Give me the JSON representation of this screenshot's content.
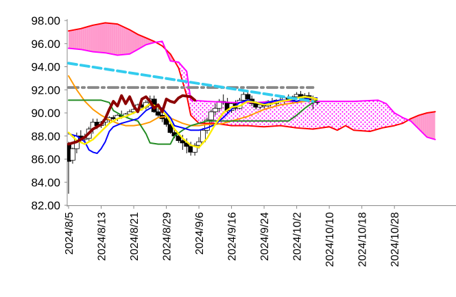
{
  "chart_data": {
    "type": "line",
    "title": "",
    "xlabel": "",
    "ylabel": "",
    "ylim": [
      82,
      98
    ],
    "yticks": [
      "98.00",
      "96.00",
      "94.00",
      "92.00",
      "90.00",
      "88.00",
      "86.00",
      "84.00",
      "82.00"
    ],
    "xticks": [
      "2024/8/5",
      "2024/8/13",
      "2024/8/21",
      "2024/8/29",
      "2024/9/6",
      "2024/9/16",
      "2024/9/24",
      "2024/10/2",
      "2024/10/10",
      "2024/10/18",
      "2024/10/28"
    ],
    "grid": false,
    "legend": "none",
    "colors": {
      "candle_up": "#ffffff",
      "candle_down": "#000000",
      "tenkan": "#0000ff",
      "kijun": "#228b22",
      "chikou": "#8b0000",
      "senkou_a": "#ff0000",
      "senkou_b": "#ff00ff",
      "cloud": "#ff99cc",
      "ma_short": "#ffee00",
      "ma_mid": "#ff9900",
      "trend_long": "#33ccee",
      "trend_flat": "#888888"
    },
    "candles": [
      [
        87.3,
        87.5,
        83.0,
        85.8
      ],
      [
        85.9,
        87.0,
        85.6,
        86.9
      ],
      [
        86.9,
        88.3,
        86.5,
        88.0
      ],
      [
        88.0,
        88.5,
        87.4,
        87.7
      ],
      [
        87.7,
        88.2,
        87.3,
        87.8
      ],
      [
        87.8,
        88.8,
        87.6,
        88.6
      ],
      [
        88.6,
        89.5,
        88.2,
        89.2
      ],
      [
        89.2,
        89.5,
        88.6,
        88.9
      ],
      [
        88.9,
        89.3,
        88.7,
        89.2
      ],
      [
        89.2,
        89.6,
        88.9,
        89.4
      ],
      [
        89.4,
        89.7,
        89.1,
        89.6
      ],
      [
        89.6,
        89.8,
        89.4,
        89.5
      ],
      [
        89.5,
        89.9,
        89.3,
        89.8
      ],
      [
        89.8,
        90.2,
        89.5,
        89.7
      ],
      [
        89.7,
        90.0,
        89.6,
        89.9
      ],
      [
        89.9,
        90.3,
        89.8,
        90.1
      ],
      [
        90.1,
        90.5,
        89.9,
        90.3
      ],
      [
        90.3,
        90.8,
        90.0,
        90.7
      ],
      [
        90.7,
        91.0,
        90.2,
        90.5
      ],
      [
        90.5,
        91.1,
        90.3,
        90.9
      ],
      [
        90.9,
        91.5,
        90.6,
        91.2
      ],
      [
        91.2,
        91.5,
        90.0,
        90.1
      ],
      [
        90.1,
        90.5,
        89.6,
        89.8
      ],
      [
        89.8,
        90.2,
        89.2,
        89.5
      ],
      [
        89.5,
        89.8,
        88.8,
        89.0
      ],
      [
        89.0,
        89.3,
        88.2,
        88.3
      ],
      [
        88.3,
        88.6,
        87.8,
        88.0
      ],
      [
        88.0,
        88.3,
        87.4,
        87.6
      ],
      [
        87.6,
        88.1,
        86.8,
        87.4
      ],
      [
        87.4,
        87.8,
        86.5,
        87.1
      ],
      [
        87.1,
        87.5,
        86.3,
        86.6
      ],
      [
        86.6,
        87.4,
        86.3,
        87.2
      ],
      [
        87.2,
        87.9,
        86.9,
        87.5
      ],
      [
        87.5,
        88.7,
        87.3,
        88.5
      ],
      [
        88.5,
        89.6,
        88.2,
        89.4
      ],
      [
        89.4,
        90.3,
        89.1,
        90.1
      ],
      [
        90.1,
        90.8,
        89.8,
        90.4
      ],
      [
        90.4,
        91.2,
        90.1,
        91.0
      ],
      [
        91.0,
        91.6,
        90.7,
        90.9
      ],
      [
        90.9,
        91.3,
        90.0,
        90.2
      ],
      [
        90.2,
        90.9,
        90.0,
        90.8
      ],
      [
        90.8,
        91.1,
        90.2,
        90.4
      ],
      [
        90.4,
        91.3,
        90.3,
        91.1
      ],
      [
        91.1,
        91.8,
        90.9,
        91.6
      ],
      [
        91.6,
        91.9,
        91.0,
        91.2
      ],
      [
        91.2,
        91.5,
        90.6,
        90.8
      ],
      [
        90.8,
        91.0,
        90.3,
        90.5
      ],
      [
        90.5,
        90.9,
        90.3,
        90.7
      ],
      [
        90.7,
        91.0,
        90.4,
        90.6
      ],
      [
        90.6,
        91.1,
        90.5,
        91.0
      ],
      [
        91.0,
        91.3,
        90.7,
        90.8
      ],
      [
        90.8,
        91.2,
        90.6,
        91.1
      ],
      [
        91.1,
        91.4,
        90.9,
        91.0
      ],
      [
        91.0,
        91.4,
        90.8,
        91.3
      ],
      [
        91.3,
        91.6,
        91.0,
        91.1
      ],
      [
        91.1,
        91.5,
        90.9,
        91.4
      ],
      [
        91.4,
        91.8,
        91.2,
        91.6
      ],
      [
        91.6,
        91.9,
        91.1,
        91.3
      ],
      [
        91.3,
        91.7,
        91.0,
        91.5
      ],
      [
        91.5,
        91.8,
        90.9,
        91.1
      ],
      [
        91.1,
        91.5,
        90.3,
        91.0
      ],
      [
        91.0,
        91.3,
        90.7,
        90.9
      ]
    ],
    "senkou_a": [
      [
        0,
        97.1
      ],
      [
        3,
        97.3
      ],
      [
        6,
        97.6
      ],
      [
        9,
        97.8
      ],
      [
        12,
        97.7
      ],
      [
        15,
        97.2
      ],
      [
        17,
        96.8
      ],
      [
        19,
        96.5
      ],
      [
        21,
        96.2
      ],
      [
        23,
        95.8
      ],
      [
        25,
        95.1
      ],
      [
        27,
        93.9
      ],
      [
        29,
        91.5
      ],
      [
        30,
        89.8
      ],
      [
        32,
        89.1
      ],
      [
        36,
        89.1
      ],
      [
        40,
        88.9
      ],
      [
        44,
        88.9
      ],
      [
        48,
        88.8
      ],
      [
        52,
        88.9
      ],
      [
        56,
        88.7
      ],
      [
        60,
        88.6
      ],
      [
        64,
        88.8
      ],
      [
        66,
        88.5
      ],
      [
        68,
        88.9
      ],
      [
        70,
        88.5
      ],
      [
        74,
        88.4
      ],
      [
        77,
        88.7
      ],
      [
        80,
        88.9
      ],
      [
        82,
        89.1
      ],
      [
        84,
        89.5
      ],
      [
        86,
        89.8
      ],
      [
        88,
        90.0
      ],
      [
        90,
        90.1
      ]
    ],
    "senkou_b": [
      [
        0,
        95.6
      ],
      [
        3,
        95.5
      ],
      [
        6,
        95.3
      ],
      [
        9,
        95.2
      ],
      [
        12,
        95.0
      ],
      [
        15,
        95.1
      ],
      [
        17,
        95.5
      ],
      [
        19,
        95.9
      ],
      [
        21,
        96.1
      ],
      [
        23,
        96.2
      ],
      [
        25,
        94.5
      ],
      [
        27,
        94.4
      ],
      [
        29,
        93.6
      ],
      [
        30,
        91.1
      ],
      [
        34,
        91.0
      ],
      [
        40,
        90.9
      ],
      [
        46,
        90.9
      ],
      [
        52,
        91.0
      ],
      [
        58,
        91.0
      ],
      [
        64,
        91.0
      ],
      [
        70,
        91.0
      ],
      [
        76,
        91.1
      ],
      [
        78,
        90.8
      ],
      [
        80,
        90.0
      ],
      [
        82,
        89.6
      ],
      [
        84,
        89.3
      ],
      [
        86,
        88.6
      ],
      [
        88,
        87.9
      ],
      [
        90,
        87.7
      ]
    ],
    "tenkan": [
      [
        0,
        88.2
      ],
      [
        2,
        88.0
      ],
      [
        4,
        87.5
      ],
      [
        5,
        86.8
      ],
      [
        6,
        86.6
      ],
      [
        7,
        86.5
      ],
      [
        8,
        86.9
      ],
      [
        9,
        87.5
      ],
      [
        10,
        88.4
      ],
      [
        11,
        88.8
      ],
      [
        13,
        89.1
      ],
      [
        15,
        89.3
      ],
      [
        17,
        89.5
      ],
      [
        19,
        90.2
      ],
      [
        21,
        90.6
      ],
      [
        23,
        90.4
      ],
      [
        25,
        89.6
      ],
      [
        26,
        88.9
      ],
      [
        28,
        88.7
      ],
      [
        30,
        88.5
      ],
      [
        32,
        88.5
      ],
      [
        34,
        88.7
      ],
      [
        36,
        89.0
      ],
      [
        38,
        89.6
      ],
      [
        40,
        90.3
      ],
      [
        42,
        90.9
      ],
      [
        44,
        91.1
      ],
      [
        46,
        90.9
      ],
      [
        48,
        90.8
      ],
      [
        50,
        91.0
      ],
      [
        52,
        91.1
      ],
      [
        54,
        91.1
      ],
      [
        56,
        91.0
      ],
      [
        58,
        91.2
      ],
      [
        60,
        91.3
      ],
      [
        61,
        91.3
      ]
    ],
    "kijun": [
      [
        0,
        91.1
      ],
      [
        8,
        91.1
      ],
      [
        10,
        90.9
      ],
      [
        11,
        90.2
      ],
      [
        13,
        89.8
      ],
      [
        15,
        89.5
      ],
      [
        17,
        89.3
      ],
      [
        19,
        88.2
      ],
      [
        20,
        87.4
      ],
      [
        22,
        87.3
      ],
      [
        25,
        87.3
      ],
      [
        26,
        88.0
      ],
      [
        28,
        88.5
      ],
      [
        30,
        88.9
      ],
      [
        34,
        89.3
      ],
      [
        40,
        89.3
      ],
      [
        46,
        89.3
      ],
      [
        52,
        89.3
      ],
      [
        54,
        89.3
      ],
      [
        56,
        89.8
      ],
      [
        58,
        90.4
      ],
      [
        60,
        90.9
      ],
      [
        61,
        91.1
      ]
    ],
    "chikou": [
      [
        0,
        87.3
      ],
      [
        2,
        87.5
      ],
      [
        4,
        87.9
      ],
      [
        6,
        88.6
      ],
      [
        8,
        89.0
      ],
      [
        9,
        89.5
      ],
      [
        10,
        90.3
      ],
      [
        11,
        91.0
      ],
      [
        12,
        90.6
      ],
      [
        13,
        91.5
      ],
      [
        14,
        90.8
      ],
      [
        15,
        91.4
      ],
      [
        16,
        90.6
      ],
      [
        17,
        90.1
      ],
      [
        18,
        91.2
      ],
      [
        19,
        91.4
      ],
      [
        20,
        91.0
      ],
      [
        21,
        90.4
      ],
      [
        22,
        90.7
      ],
      [
        23,
        90.1
      ],
      [
        24,
        91.2
      ],
      [
        25,
        91.0
      ],
      [
        26,
        90.9
      ],
      [
        27,
        91.3
      ],
      [
        28,
        91.5
      ],
      [
        30,
        91.4
      ],
      [
        31,
        91.1
      ]
    ],
    "ma_short": [
      [
        0,
        88.3
      ],
      [
        2,
        87.6
      ],
      [
        4,
        87.3
      ],
      [
        6,
        87.7
      ],
      [
        8,
        88.4
      ],
      [
        10,
        89.1
      ],
      [
        12,
        89.5
      ],
      [
        14,
        89.7
      ],
      [
        16,
        90.0
      ],
      [
        18,
        90.3
      ],
      [
        20,
        90.8
      ],
      [
        22,
        90.5
      ],
      [
        24,
        89.8
      ],
      [
        26,
        88.6
      ],
      [
        28,
        87.8
      ],
      [
        30,
        87.2
      ],
      [
        32,
        87.0
      ],
      [
        34,
        87.8
      ],
      [
        36,
        89.0
      ],
      [
        38,
        90.0
      ],
      [
        40,
        90.5
      ],
      [
        42,
        90.6
      ],
      [
        44,
        91.0
      ],
      [
        46,
        90.9
      ],
      [
        48,
        90.7
      ],
      [
        50,
        90.8
      ],
      [
        52,
        91.0
      ],
      [
        54,
        91.1
      ],
      [
        56,
        91.3
      ],
      [
        58,
        91.4
      ],
      [
        60,
        91.3
      ],
      [
        61,
        91.2
      ]
    ],
    "ma_mid": [
      [
        0,
        93.2
      ],
      [
        2,
        92.0
      ],
      [
        4,
        91.0
      ],
      [
        6,
        90.3
      ],
      [
        8,
        89.8
      ],
      [
        10,
        89.4
      ],
      [
        12,
        89.1
      ],
      [
        14,
        88.9
      ],
      [
        16,
        88.9
      ],
      [
        18,
        89.0
      ],
      [
        20,
        89.2
      ],
      [
        22,
        89.6
      ],
      [
        24,
        89.7
      ],
      [
        26,
        89.4
      ],
      [
        28,
        89.1
      ],
      [
        30,
        88.9
      ],
      [
        32,
        88.9
      ],
      [
        34,
        89.0
      ],
      [
        36,
        89.0
      ],
      [
        38,
        89.1
      ],
      [
        40,
        89.3
      ],
      [
        42,
        89.5
      ],
      [
        44,
        89.7
      ],
      [
        46,
        90.0
      ],
      [
        48,
        90.3
      ],
      [
        50,
        90.5
      ],
      [
        52,
        90.7
      ],
      [
        54,
        90.8
      ],
      [
        56,
        90.9
      ],
      [
        58,
        91.0
      ],
      [
        60,
        91.1
      ],
      [
        61,
        91.1
      ]
    ],
    "trend_long": [
      [
        0,
        94.3
      ],
      [
        60,
        91.0
      ]
    ],
    "trend_flat": [
      [
        0,
        92.2
      ],
      [
        60,
        92.2
      ]
    ]
  }
}
